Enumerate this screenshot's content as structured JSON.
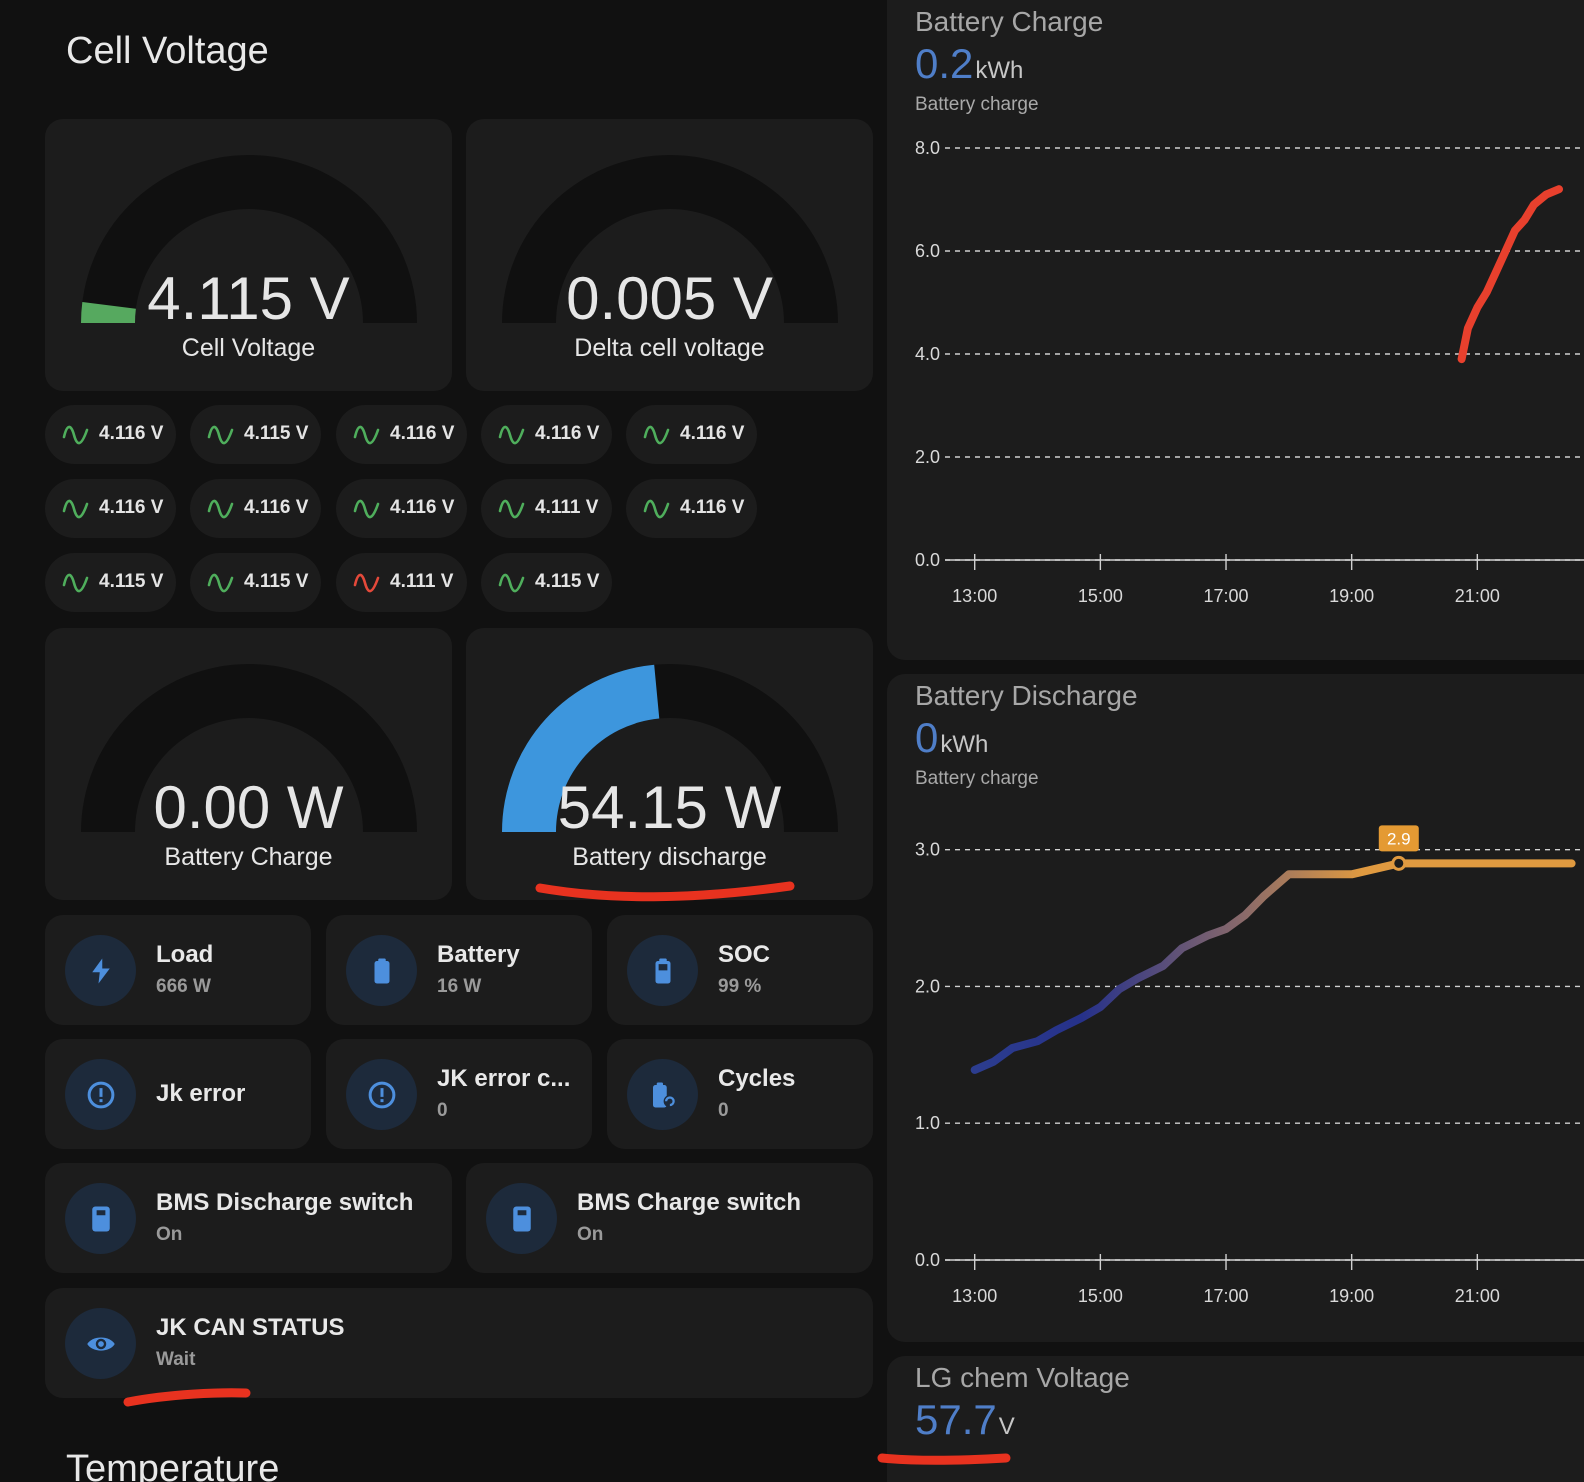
{
  "left": {
    "section_title": "Cell Voltage",
    "next_section_title": "Temperature",
    "gauges": [
      {
        "value": "4.115 V",
        "label": "Cell Voltage",
        "fill": 0.04,
        "color": "#56a95f"
      },
      {
        "value": "0.005 V",
        "label": "Delta cell voltage",
        "fill": 0,
        "color": "#56a95f"
      },
      {
        "value": "0.00 W",
        "label": "Battery Charge",
        "fill": 0,
        "color": "#3d96dd"
      },
      {
        "value": "54.15 W",
        "label": "Battery discharge",
        "fill": 0.47,
        "color": "#3d96dd"
      }
    ],
    "cells": [
      {
        "value": "4.116 V",
        "status": "green"
      },
      {
        "value": "4.115 V",
        "status": "green"
      },
      {
        "value": "4.116 V",
        "status": "green"
      },
      {
        "value": "4.116 V",
        "status": "green"
      },
      {
        "value": "4.116 V",
        "status": "green"
      },
      {
        "value": "4.116 V",
        "status": "green"
      },
      {
        "value": "4.116 V",
        "status": "green"
      },
      {
        "value": "4.116 V",
        "status": "green"
      },
      {
        "value": "4.111 V",
        "status": "green"
      },
      {
        "value": "4.116 V",
        "status": "green"
      },
      {
        "value": "4.115 V",
        "status": "green"
      },
      {
        "value": "4.115 V",
        "status": "green"
      },
      {
        "value": "4.111 V",
        "status": "red"
      },
      {
        "value": "4.115 V",
        "status": "green"
      }
    ],
    "tiles": {
      "load": {
        "name": "Load",
        "state": "666 W",
        "icon": "lightning-icon"
      },
      "battery": {
        "name": "Battery",
        "state": "16 W",
        "icon": "battery-icon"
      },
      "soc": {
        "name": "SOC",
        "state": "99 %",
        "icon": "battery-high-icon"
      },
      "jk_error": {
        "name": "Jk error",
        "icon": "alert-circle-icon"
      },
      "jk_error_count": {
        "name": "JK error c...",
        "state": "0",
        "icon": "alert-circle-icon"
      },
      "cycles": {
        "name": "Cycles",
        "state": "0",
        "icon": "battery-sync-icon"
      },
      "bms_discharge": {
        "name": "BMS Discharge switch",
        "state": "On",
        "icon": "switch-icon"
      },
      "bms_charge": {
        "name": "BMS Charge switch",
        "state": "On",
        "icon": "switch-icon"
      },
      "jk_can": {
        "name": "JK CAN STATUS",
        "state": "Wait",
        "icon": "eye-icon"
      }
    }
  },
  "right": {
    "battery_charge": {
      "title": "Battery Charge",
      "value": "0.2",
      "unit": "kWh",
      "subtitle": "Battery charge"
    },
    "battery_discharge": {
      "title": "Battery Discharge",
      "value": "0",
      "unit": "kWh",
      "subtitle": "Battery charge",
      "tooltip": "2.9"
    },
    "lg_chem": {
      "title": "LG chem Voltage",
      "value": "57.7",
      "unit": "V"
    }
  },
  "chart_data": [
    {
      "type": "line",
      "title": "Battery Charge",
      "x_ticks": [
        "13:00",
        "15:00",
        "17:00",
        "19:00",
        "21:00"
      ],
      "y_ticks": [
        "0.0",
        "2.0",
        "4.0",
        "6.0",
        "8.0"
      ],
      "ylim": [
        0,
        8
      ],
      "series": [
        {
          "color": "#e8402d",
          "x": [
            20.75,
            20.85,
            21.0,
            21.15,
            21.3,
            21.45,
            21.6,
            21.75,
            21.9,
            22.1,
            22.3
          ],
          "y": [
            3.9,
            4.5,
            4.9,
            5.2,
            5.6,
            6.0,
            6.4,
            6.6,
            6.9,
            7.1,
            7.2
          ]
        }
      ],
      "grid": true
    },
    {
      "type": "line",
      "title": "Battery Discharge",
      "x_ticks": [
        "13:00",
        "15:00",
        "17:00",
        "19:00",
        "21:00"
      ],
      "y_ticks": [
        "0.0",
        "1.0",
        "2.0",
        "3.0"
      ],
      "ylim": [
        0,
        3.1
      ],
      "series": [
        {
          "color_gradient": [
            "#2c3d8f",
            "#e09a40"
          ],
          "x": [
            13.0,
            13.3,
            13.6,
            14.0,
            14.3,
            14.7,
            15.0,
            15.3,
            15.6,
            16.0,
            16.3,
            16.7,
            17.0,
            17.3,
            17.6,
            18.0,
            18.3,
            19.0,
            19.75,
            20.5,
            21.5,
            22.5
          ],
          "y": [
            1.39,
            1.45,
            1.55,
            1.6,
            1.68,
            1.77,
            1.85,
            1.98,
            2.06,
            2.15,
            2.28,
            2.37,
            2.42,
            2.52,
            2.66,
            2.82,
            2.82,
            2.82,
            2.9,
            2.9,
            2.9,
            2.9
          ]
        }
      ],
      "grid": true,
      "annotation": {
        "x": 19.75,
        "y": 2.9,
        "label": "2.9"
      }
    }
  ]
}
